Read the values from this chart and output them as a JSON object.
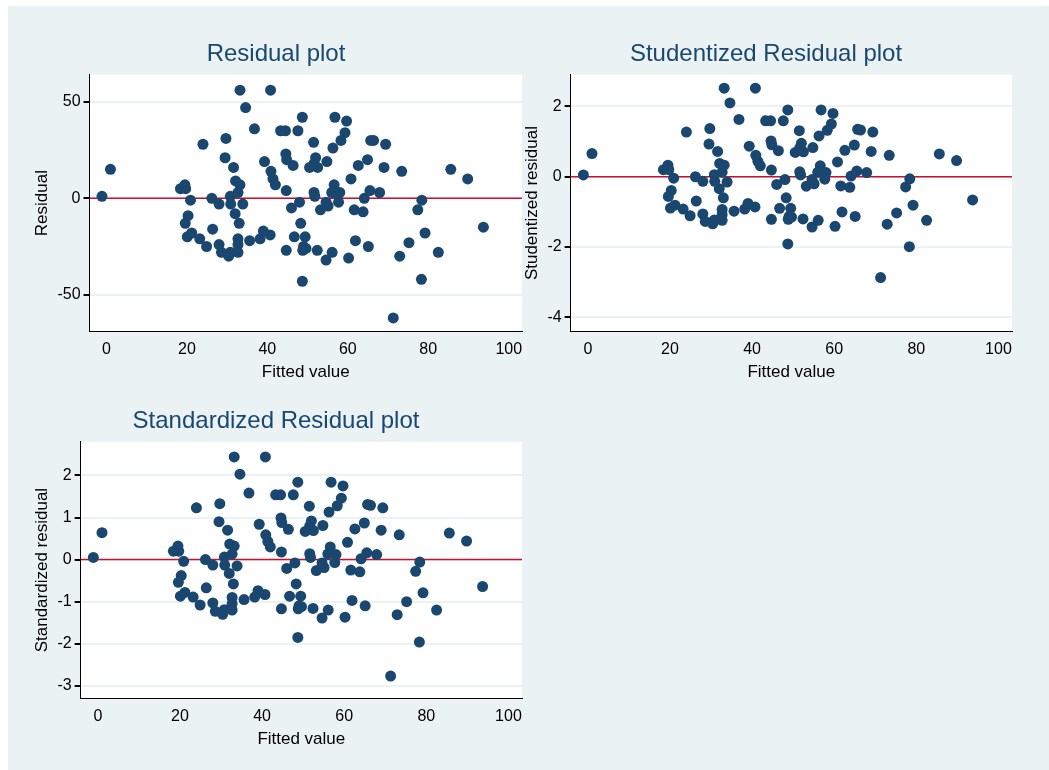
{
  "chart_data": [
    {
      "type": "scatter",
      "title": "Residual plot",
      "xlabel": "Fitted value",
      "ylabel": "Residual",
      "xlim": [
        -4.2,
        103.3
      ],
      "xticks": [
        0,
        20,
        40,
        60,
        80,
        100
      ],
      "ylim": [
        -69,
        64
      ],
      "yticks": [
        -50,
        0,
        50
      ],
      "grid": "y",
      "marker": "circle",
      "ref_lines": [
        {
          "axis": "y",
          "value": 0,
          "color": "#c8102e"
        }
      ],
      "x": [
        -1.1,
        1.0,
        18.4,
        19.5,
        19.7,
        20.9,
        20.3,
        19.6,
        20.1,
        21.2,
        23.2,
        24.9,
        24.0,
        26.2,
        26.4,
        28.0,
        28.0,
        28.6,
        30.4,
        30.8,
        29.7,
        29.5,
        31.6,
        32.1,
        33.2,
        32.7,
        30.8,
        30.9,
        32.0,
        33.9,
        33.0,
        32.7,
        32.7,
        32.7,
        35.6,
        33.2,
        34.6,
        36.8,
        39.3,
        38.2,
        39.0,
        40.7,
        40.9,
        41.4,
        42.0,
        40.8,
        43.3,
        44.5,
        44.6,
        44.8,
        46.4,
        44.7,
        47.6,
        48.7,
        48.0,
        46.0,
        48.3,
        46.7,
        44.7,
        49.4,
        49.0,
        48.8,
        49.6,
        48.7,
        51.5,
        52.0,
        51.6,
        50.5,
        52.5,
        54.8,
        51.6,
        51.8,
        53.2,
        55.1,
        54.6,
        52.4,
        54.6,
        56.1,
        56.8,
        56.3,
        58.3,
        59.3,
        59.7,
        56.6,
        56.0,
        57.5,
        58.0,
        57.7,
        60.8,
        61.6,
        63.8,
        61.9,
        60.2,
        65.1,
        62.6,
        64.9,
        65.7,
        66.4,
        64.1,
        65.5,
        67.9,
        69.0,
        69.4,
        71.3,
        72.9,
        73.4,
        75.2,
        77.4,
        78.4,
        79.2,
        78.3,
        82.5,
        85.6,
        89.8,
        93.7
      ],
      "series": [
        {
          "color": "#1a476f",
          "values": [
            1,
            15,
            5,
            7,
            5,
            -1,
            -9,
            -13,
            -20,
            -18,
            -21,
            -25,
            28,
            0,
            -16,
            -3,
            -24,
            -28,
            -30,
            -28,
            31,
            21,
            16,
            9,
            7,
            3,
            1,
            -3,
            -8,
            -3,
            -13,
            -21,
            -24,
            -28,
            -22,
            56,
            47,
            36,
            19,
            -21,
            -17,
            -19,
            14,
            10,
            7,
            56,
            35,
            35,
            23,
            20,
            17,
            4,
            35,
            42,
            -2,
            -5,
            -13,
            -20,
            -27,
            -20,
            -25,
            -27,
            -26,
            -43,
            29,
            21,
            18,
            16,
            16,
            19,
            3,
            1,
            -6,
            -4,
            -2,
            -27,
            -32,
            -28,
            42,
            26,
            30,
            34,
            40,
            7,
            3,
            2,
            3,
            -2,
            10,
            -6,
            -7,
            -22,
            -31,
            -25,
            17,
            20,
            30,
            30,
            0,
            4,
            3,
            16,
            28,
            -62,
            -30,
            14,
            -23,
            -6,
            -1,
            -18,
            -42,
            -28,
            15,
            10,
            -15
          ]
        }
      ]
    },
    {
      "type": "scatter",
      "title": "Studentized Residual plot",
      "xlabel": "Fitted value",
      "ylabel": "Studentized residual",
      "xlim": [
        -4.2,
        103.3
      ],
      "xticks": [
        0,
        20,
        40,
        60,
        80,
        100
      ],
      "ylim": [
        -4.4,
        2.9
      ],
      "yticks": [
        -4,
        -2,
        0,
        2
      ],
      "grid": "y",
      "marker": "circle",
      "ref_lines": [
        {
          "axis": "y",
          "value": 0,
          "color": "#c8102e"
        }
      ],
      "x": [
        -1.1,
        1.0,
        18.4,
        19.5,
        19.7,
        20.9,
        20.3,
        19.6,
        20.1,
        21.2,
        23.2,
        24.9,
        24.0,
        26.2,
        26.4,
        28.0,
        28.0,
        28.6,
        30.4,
        30.8,
        29.7,
        29.5,
        31.6,
        32.1,
        33.2,
        32.7,
        30.8,
        30.9,
        32.0,
        33.9,
        33.0,
        32.7,
        32.7,
        32.7,
        35.6,
        33.2,
        34.6,
        36.8,
        39.3,
        38.2,
        39.0,
        40.7,
        40.9,
        41.4,
        42.0,
        40.8,
        43.3,
        44.5,
        44.6,
        44.8,
        46.4,
        44.7,
        47.6,
        48.7,
        48.0,
        46.0,
        48.3,
        46.7,
        44.7,
        49.4,
        49.0,
        48.8,
        49.6,
        48.7,
        51.5,
        52.0,
        51.6,
        50.5,
        52.5,
        54.8,
        51.6,
        51.8,
        53.2,
        55.1,
        54.6,
        52.4,
        54.6,
        56.1,
        56.8,
        56.3,
        58.3,
        59.3,
        59.7,
        56.6,
        56.0,
        57.5,
        58.0,
        57.7,
        60.8,
        61.6,
        63.8,
        61.9,
        60.2,
        65.1,
        62.6,
        64.9,
        65.7,
        66.4,
        64.1,
        65.5,
        67.9,
        69.0,
        69.4,
        71.3,
        72.9,
        73.4,
        75.2,
        77.4,
        78.4,
        79.2,
        78.3,
        82.5,
        85.6,
        89.8,
        93.7
      ],
      "series": [
        {
          "color": "#1a476f",
          "values": [
            0.05,
            0.66,
            0.2,
            0.33,
            0.2,
            -0.04,
            -0.39,
            -0.56,
            -0.89,
            -0.81,
            -0.92,
            -1.11,
            1.27,
            0,
            -0.69,
            -0.13,
            -1.06,
            -1.27,
            -1.34,
            -1.23,
            1.37,
            0.93,
            0.72,
            0.38,
            0.33,
            0.13,
            0.06,
            -0.13,
            -0.34,
            -0.15,
            -0.6,
            -0.93,
            -1.08,
            -1.24,
            -0.98,
            2.52,
            2.1,
            1.63,
            0.87,
            -0.92,
            -0.76,
            -0.86,
            0.61,
            0.44,
            0.31,
            2.52,
            1.59,
            1.59,
            1.02,
            0.91,
            0.74,
            0.19,
            1.59,
            1.9,
            -0.08,
            -0.22,
            -0.6,
            -0.9,
            -1.21,
            -0.9,
            -1.13,
            -1.21,
            -1.15,
            -1.91,
            1.31,
            0.95,
            0.82,
            0.69,
            0.71,
            0.83,
            0.14,
            0.05,
            -0.27,
            -0.2,
            -0.08,
            -1.2,
            -1.43,
            -1.24,
            1.9,
            1.16,
            1.32,
            1.5,
            1.8,
            0.31,
            0.13,
            null,
            0.12,
            -0.07,
            0.42,
            -0.26,
            -0.3,
            -1.0,
            -1.41,
            -1.13,
            0.75,
            0.9,
            1.35,
            1.33,
            0.02,
            0.16,
            0.12,
            0.72,
            1.27,
            -2.87,
            -1.35,
            0.61,
            -1.03,
            -0.29,
            -0.06,
            -0.81,
            -1.99,
            -1.24,
            0.65,
            0.46,
            -0.66
          ]
        }
      ]
    },
    {
      "type": "scatter",
      "title": "Standardized Residual plot",
      "xlabel": "Fitted value",
      "ylabel": "Standardized residual",
      "xlim": [
        -4.2,
        103.3
      ],
      "xticks": [
        0,
        20,
        40,
        60,
        80,
        100
      ],
      "ylim": [
        -3.3,
        2.8
      ],
      "yticks": [
        -3,
        -2,
        -1,
        0,
        1,
        2
      ],
      "grid": "y",
      "marker": "circle",
      "ref_lines": [
        {
          "axis": "y",
          "value": 0,
          "color": "#c8102e"
        }
      ],
      "x": [
        -1.1,
        1.0,
        18.4,
        19.5,
        19.7,
        20.9,
        20.3,
        19.6,
        20.1,
        21.2,
        23.2,
        24.9,
        24.0,
        26.2,
        26.4,
        28.0,
        28.0,
        28.6,
        30.4,
        30.8,
        29.7,
        29.5,
        31.6,
        32.1,
        33.2,
        32.7,
        30.8,
        30.9,
        32.0,
        33.9,
        33.0,
        32.7,
        32.7,
        32.7,
        35.6,
        33.2,
        34.6,
        36.8,
        39.3,
        38.2,
        39.0,
        40.7,
        40.9,
        41.4,
        42.0,
        40.8,
        43.3,
        44.5,
        44.6,
        44.8,
        46.4,
        44.7,
        47.6,
        48.7,
        48.0,
        46.0,
        48.3,
        46.7,
        44.7,
        49.4,
        49.0,
        48.8,
        49.6,
        48.7,
        51.5,
        52.0,
        51.6,
        50.5,
        52.5,
        54.8,
        51.6,
        51.8,
        53.2,
        55.1,
        54.6,
        52.4,
        54.6,
        56.1,
        56.8,
        56.3,
        58.3,
        59.3,
        59.7,
        56.6,
        56.0,
        57.5,
        58.0,
        57.7,
        60.8,
        61.6,
        63.8,
        61.9,
        60.2,
        65.1,
        62.6,
        64.9,
        65.7,
        66.4,
        64.1,
        65.5,
        67.9,
        69.0,
        69.4,
        71.3,
        72.9,
        73.4,
        75.2,
        77.4,
        78.4,
        79.2,
        78.3,
        82.5,
        85.6,
        89.8,
        93.7
      ],
      "series": [
        {
          "color": "#1a476f",
          "values": [
            0.05,
            0.64,
            0.2,
            0.32,
            0.2,
            -0.04,
            -0.38,
            -0.54,
            -0.87,
            -0.78,
            -0.89,
            -1.08,
            1.23,
            0,
            -0.67,
            -0.13,
            -1.03,
            -1.23,
            -1.3,
            -1.19,
            1.33,
            0.9,
            0.7,
            0.37,
            0.32,
            0.13,
            0.06,
            -0.13,
            -0.33,
            -0.15,
            -0.58,
            -0.9,
            -1.05,
            -1.2,
            -0.95,
            2.44,
            2.03,
            1.58,
            0.84,
            -0.89,
            -0.74,
            -0.83,
            0.59,
            0.43,
            0.3,
            2.44,
            1.54,
            1.54,
            0.99,
            0.88,
            0.72,
            0.18,
            1.54,
            1.84,
            -0.08,
            -0.21,
            -0.58,
            -0.87,
            -1.17,
            -0.87,
            -1.1,
            -1.17,
            -1.12,
            -1.85,
            1.27,
            0.92,
            0.8,
            0.67,
            0.69,
            0.81,
            0.14,
            0.05,
            -0.26,
            -0.19,
            -0.08,
            -1.16,
            -1.39,
            -1.2,
            1.84,
            1.13,
            1.28,
            1.46,
            1.75,
            0.3,
            0.13,
            null,
            0.12,
            -0.07,
            0.41,
            -0.25,
            -0.29,
            -0.97,
            -1.37,
            -1.1,
            0.73,
            0.87,
            1.31,
            1.29,
            0.02,
            0.16,
            0.12,
            0.7,
            1.23,
            -2.77,
            -1.31,
            0.59,
            -1.0,
            -0.28,
            -0.06,
            -0.79,
            -1.96,
            -1.2,
            0.63,
            0.44,
            -0.64
          ]
        }
      ]
    }
  ]
}
